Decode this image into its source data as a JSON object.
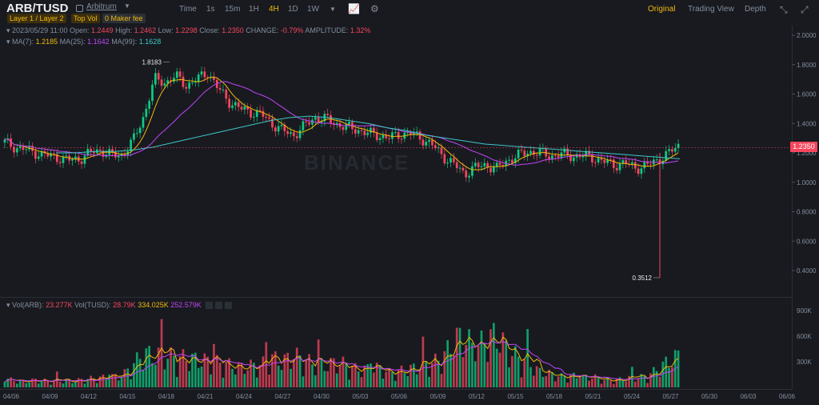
{
  "header": {
    "pair": "ARB/TUSD",
    "project": "Arbitrum",
    "tags": [
      "Layer 1 / Layer 2",
      "Top Vol",
      "0 Maker fee"
    ],
    "timeframes": [
      "Time",
      "1s",
      "15m",
      "1H",
      "4H",
      "1D",
      "1W"
    ],
    "active_timeframe": "4H",
    "views": [
      "Original",
      "Trading View",
      "Depth"
    ],
    "active_view": "Original"
  },
  "ohlc": {
    "date": "2023/05/29 11:00",
    "open_label": "Open:",
    "open": "1.2449",
    "high_label": "High:",
    "high": "1.2462",
    "low_label": "Low:",
    "low": "1.2298",
    "close_label": "Close:",
    "close": "1.2350",
    "change_label": "CHANGE:",
    "change": "-0.79%",
    "amp_label": "AMPLITUDE:",
    "amp": "1.32%"
  },
  "ma": {
    "ma7_label": "MA(7):",
    "ma7": "1.2185",
    "ma25_label": "MA(25):",
    "ma25": "1.1642",
    "ma99_label": "MA(99):",
    "ma99": "1.1628"
  },
  "vol": {
    "arb_label": "Vol(ARB):",
    "arb": "23.277K",
    "tusd_label": "Vol(TUSD):",
    "tusd": "28.79K",
    "ma1": "334.025K",
    "ma2": "252.579K"
  },
  "current_price": "1.2350",
  "watermark": "BINANCE",
  "annotations": {
    "high": "1.8183",
    "low": "0.3512"
  },
  "colors": {
    "up": "#0ecb81",
    "down": "#f6465d",
    "ma7": "#f0b90b",
    "ma25": "#c145f6",
    "ma99": "#3ec6c6",
    "accent": "#f0b90b"
  },
  "chart_data": {
    "type": "candlestick",
    "price_ticks": [
      "2.0000",
      "1.8000",
      "1.6000",
      "1.4000",
      "1.2000",
      "1.0000",
      "0.8000",
      "0.6000",
      "0.4000"
    ],
    "price_range": [
      0.3,
      2.05
    ],
    "vol_ticks": [
      "900K",
      "600K",
      "300K"
    ],
    "vol_range": [
      0,
      1000
    ],
    "x_ticks": [
      "04/06",
      "04/09",
      "04/12",
      "04/15",
      "04/18",
      "04/21",
      "04/24",
      "04/27",
      "04/30",
      "05/03",
      "05/06",
      "05/09",
      "05/12",
      "05/15",
      "05/18",
      "05/21",
      "05/24",
      "05/27",
      "05/30",
      "06/03",
      "06/06"
    ],
    "close_series": [
      1.27,
      1.24,
      1.22,
      1.2,
      1.18,
      1.17,
      1.15,
      1.16,
      1.2,
      1.22,
      1.18,
      1.19,
      1.28,
      1.45,
      1.7,
      1.68,
      1.72,
      1.66,
      1.7,
      1.75,
      1.63,
      1.55,
      1.5,
      1.48,
      1.46,
      1.4,
      1.35,
      1.32,
      1.38,
      1.44,
      1.43,
      1.4,
      1.37,
      1.36,
      1.33,
      1.32,
      1.3,
      1.33,
      1.33,
      1.3,
      1.25,
      1.18,
      1.12,
      1.06,
      1.1,
      1.12,
      1.09,
      1.15,
      1.18,
      1.21,
      1.2,
      1.18,
      1.19,
      1.18,
      1.18,
      1.17,
      1.14,
      1.12,
      1.13,
      1.1,
      1.11,
      1.15,
      1.19,
      1.25
    ],
    "volume_series": [
      90,
      70,
      60,
      80,
      65,
      70,
      60,
      75,
      90,
      100,
      110,
      120,
      230,
      350,
      320,
      330,
      300,
      300,
      280,
      270,
      250,
      230,
      200,
      220,
      230,
      300,
      260,
      330,
      280,
      240,
      220,
      260,
      230,
      180,
      190,
      200,
      150,
      170,
      190,
      220,
      250,
      300,
      480,
      520,
      380,
      490,
      530,
      390,
      300,
      250,
      160,
      140,
      110,
      120,
      100,
      110,
      80,
      70,
      90,
      100,
      110,
      180,
      260,
      320
    ],
    "ma99_series": [
      1.2,
      1.2,
      1.21,
      1.21,
      1.22,
      1.24,
      1.27,
      1.3,
      1.33,
      1.36,
      1.39,
      1.42,
      1.44,
      1.45,
      1.44,
      1.42,
      1.4,
      1.37,
      1.35,
      1.32,
      1.3,
      1.28,
      1.26,
      1.25,
      1.24,
      1.23,
      1.22,
      1.21,
      1.2,
      1.19,
      1.18,
      1.17,
      1.16
    ],
    "high_marker": 1.8183,
    "low_marker": 0.3512
  }
}
